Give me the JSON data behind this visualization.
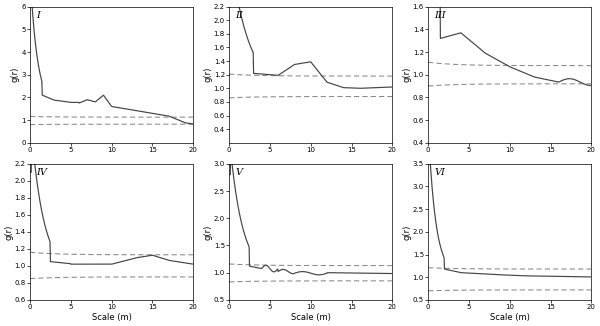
{
  "plots": [
    {
      "label": "I",
      "ylim": [
        0,
        6
      ],
      "yticks": [
        0,
        1,
        2,
        3,
        4,
        5,
        6
      ],
      "solid_shape": "I",
      "upper_env": 1.13,
      "lower_env": 0.82
    },
    {
      "label": "II",
      "ylim": [
        0.2,
        2.2
      ],
      "yticks": [
        0.4,
        0.6,
        0.8,
        1.0,
        1.2,
        1.4,
        1.6,
        1.8,
        2.0,
        2.2
      ],
      "solid_shape": "II",
      "upper_env": 1.18,
      "lower_env": 0.88
    },
    {
      "label": "III",
      "ylim": [
        0.4,
        1.6
      ],
      "yticks": [
        0.4,
        0.6,
        0.8,
        1.0,
        1.2,
        1.4,
        1.6
      ],
      "solid_shape": "III",
      "upper_env": 1.08,
      "lower_env": 0.92
    },
    {
      "label": "IV",
      "ylim": [
        0.6,
        2.2
      ],
      "yticks": [
        0.6,
        0.8,
        1.0,
        1.2,
        1.4,
        1.6,
        1.8,
        2.0,
        2.2
      ],
      "solid_shape": "IV",
      "upper_env": 1.13,
      "lower_env": 0.87
    },
    {
      "label": "V",
      "ylim": [
        0.5,
        3.0
      ],
      "yticks": [
        0.5,
        1.0,
        1.5,
        2.0,
        2.5,
        3.0
      ],
      "solid_shape": "V",
      "upper_env": 1.13,
      "lower_env": 0.85
    },
    {
      "label": "VI",
      "ylim": [
        0.5,
        3.5
      ],
      "yticks": [
        0.5,
        1.0,
        1.5,
        2.0,
        2.5,
        3.0,
        3.5
      ],
      "solid_shape": "VI",
      "upper_env": 1.18,
      "lower_env": 0.72
    }
  ],
  "xlim": [
    0,
    20
  ],
  "xticks": [
    0,
    5,
    10,
    15,
    20
  ],
  "xlabel": "Scale (m)",
  "ylabel": "g(r)",
  "line_color": "#444444",
  "envelope_color": "#888888"
}
